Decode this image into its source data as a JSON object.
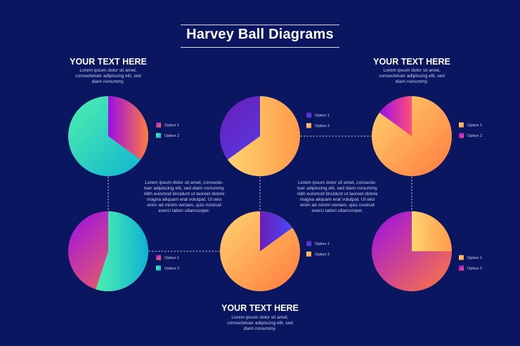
{
  "title": "Harvey Ball Diagrams",
  "blocks": {
    "top_left": {
      "heading": "YOUR TEXT HERE",
      "lines": [
        "Lorem ipsum dolor sit amet,",
        "consectetuer adipiscing elit, sed",
        "diam nonummy."
      ]
    },
    "top_right": {
      "heading": "YOUR TEXT HERE",
      "lines": [
        "Lorem ipsum dolor sit amet,",
        "consectetuer adipiscing elit, sed",
        "diam nonummy."
      ]
    },
    "bottom": {
      "heading": "YOUR TEXT HERE",
      "lines": [
        "Lorem ipsum dolor sit amet,",
        "consectetuer adipiscing elit, sed",
        "diam nonummy."
      ]
    }
  },
  "paragraph_left": [
    "Lorem ipsum dolor sit amet, consecte-",
    "tuer adipiscing elit, sed diam nonummy",
    "nibh euismod tincidunt ut laoreet dolore",
    "magna aliquam erat volutpat. Ut wisi",
    "enim ad minim veniam, quis nostrud",
    "exerci tation ullamcorper."
  ],
  "paragraph_right": [
    "Lorem ipsum dolor sit amet, consecte-",
    "tuer adipiscing elit, sed diam nonummy",
    "nibh euismod tincidunt ut laoreet dolore",
    "magna aliquam erat volutpat. Ut wisi",
    "enim ad minim veniam, quis nostrud",
    "exerci tation ullamcorper."
  ],
  "colors": {
    "background": "#0a1760",
    "teal_green": "#4ff0ad",
    "teal_blue": "#0fb3d2",
    "purple": "#9b0ee6",
    "coral": "#ff7a3d",
    "orange": "#ff9a4a",
    "yellow": "#ffd470",
    "violet": "#6a1eb8",
    "blue": "#4b48f7"
  },
  "balls": [
    {
      "id": "ball-top-left",
      "fraction": 0.35,
      "fill_start_deg": 0,
      "major_gradient": [
        "#4ff0ad",
        "#0fb3d2"
      ],
      "minor_gradient": [
        "#9b0ee6",
        "#ff7a3d"
      ],
      "legend": [
        {
          "label": "Option 1",
          "swatch": [
            "#9b0ee6",
            "#ff7a3d"
          ]
        },
        {
          "label": "Option 2",
          "swatch": [
            "#4ff0ad",
            "#0fb3d2"
          ]
        }
      ]
    },
    {
      "id": "ball-top-middle",
      "fraction": 0.65,
      "fill_start_deg": 0,
      "major_gradient": [
        "#6a1eb8",
        "#4b48f7"
      ],
      "minor_gradient": [
        "#ffd470",
        "#ff9a4a"
      ],
      "legend": [
        {
          "label": "Option 1",
          "swatch": [
            "#6a1eb8",
            "#4b48f7"
          ]
        },
        {
          "label": "Option 2",
          "swatch": [
            "#ffd470",
            "#ff9a4a"
          ]
        }
      ]
    },
    {
      "id": "ball-top-right",
      "fraction": 0.15,
      "fill_start_deg": 306,
      "major_gradient": [
        "#ffd470",
        "#ff7a3d"
      ],
      "minor_gradient": [
        "#9b0ee6",
        "#ff4f7a"
      ],
      "legend": [
        {
          "label": "Option 1",
          "swatch": [
            "#ffd470",
            "#ff9a4a"
          ]
        },
        {
          "label": "Option 2",
          "swatch": [
            "#9b0ee6",
            "#ff4f7a"
          ]
        }
      ]
    },
    {
      "id": "ball-bottom-left",
      "fraction": 0.55,
      "fill_start_deg": 0,
      "major_gradient": [
        "#9b0ee6",
        "#ff7a3d"
      ],
      "minor_gradient": [
        "#4ff0ad",
        "#0fb3d2"
      ],
      "legend": [
        {
          "label": "Option 1",
          "swatch": [
            "#9b0ee6",
            "#ff7a3d"
          ]
        },
        {
          "label": "Option 2",
          "swatch": [
            "#4ff0ad",
            "#0fb3d2"
          ]
        }
      ]
    },
    {
      "id": "ball-bottom-middle",
      "fraction": 0.15,
      "fill_start_deg": 0,
      "major_gradient": [
        "#ffd470",
        "#ff7a3d"
      ],
      "minor_gradient": [
        "#6a1eb8",
        "#4b48f7"
      ],
      "legend": [
        {
          "label": "Option 1",
          "swatch": [
            "#6a1eb8",
            "#4b48f7"
          ]
        },
        {
          "label": "Option 2",
          "swatch": [
            "#ffd470",
            "#ff9a4a"
          ]
        }
      ]
    },
    {
      "id": "ball-bottom-right",
      "fraction": 0.25,
      "fill_start_deg": 0,
      "major_gradient": [
        "#9b0ee6",
        "#ff7a3d"
      ],
      "minor_gradient": [
        "#ffd470",
        "#ff9a4a"
      ],
      "legend": [
        {
          "label": "Option 1",
          "swatch": [
            "#ffd470",
            "#ff9a4a"
          ]
        },
        {
          "label": "Option 2",
          "swatch": [
            "#9b0ee6",
            "#ff4f7a"
          ]
        }
      ]
    }
  ]
}
